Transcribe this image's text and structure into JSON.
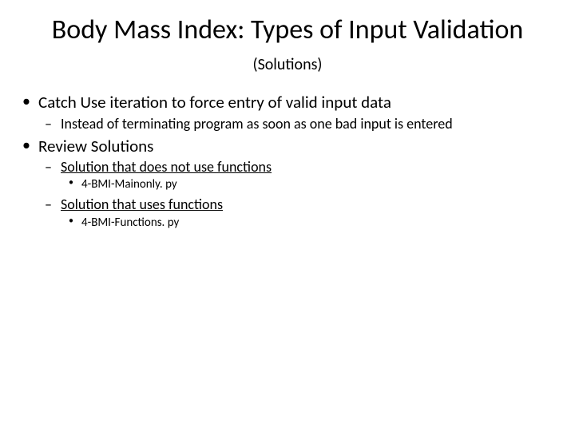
{
  "title": {
    "main": "Body Mass Index: Types of Input Validation",
    "suffix": "(Solutions)"
  },
  "bullets": [
    {
      "text": "Catch Use iteration to force entry of valid input data",
      "children": [
        {
          "text": "Instead of terminating program as soon as one bad input is entered"
        }
      ]
    },
    {
      "text": "Review Solutions",
      "children": [
        {
          "text": "Solution that does not use functions",
          "children": [
            {
              "text": "4-BMI-Mainonly. py"
            }
          ]
        },
        {
          "text": "Solution that uses functions",
          "children": [
            {
              "text": "4-BMI-Functions. py"
            }
          ]
        }
      ]
    }
  ],
  "colors": {
    "background": "#ffffff",
    "text": "#000000"
  },
  "typography": {
    "title_fontsize": 34,
    "subtitle_fontsize": 20,
    "lvl1_fontsize": 21,
    "lvl2_fontsize": 18,
    "lvl3_fontsize": 15,
    "font_family": "Calibri"
  }
}
